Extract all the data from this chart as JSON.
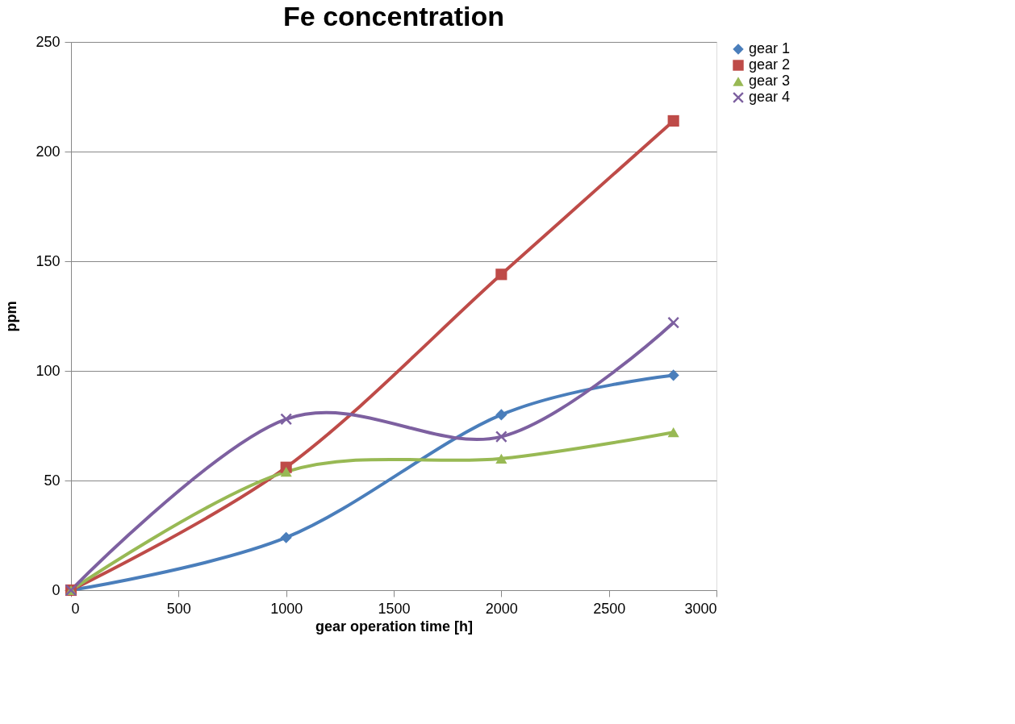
{
  "chart_data": {
    "type": "line",
    "title": "Fe concentration",
    "xlabel": "gear operation time  [h]",
    "ylabel": "ppm",
    "x": [
      0,
      1000,
      2000,
      2800
    ],
    "series": [
      {
        "name": "gear 1",
        "color": "#4a7ebb",
        "marker": "diamond",
        "values": [
          0,
          24,
          80,
          98
        ]
      },
      {
        "name": "gear 2",
        "color": "#be4b48",
        "marker": "square",
        "values": [
          0,
          56,
          144,
          214
        ]
      },
      {
        "name": "gear 3",
        "color": "#98b954",
        "marker": "triangle",
        "values": [
          0,
          54,
          60,
          72
        ]
      },
      {
        "name": "gear 4",
        "color": "#7d60a0",
        "marker": "cross",
        "values": [
          0,
          78,
          70,
          122
        ]
      }
    ],
    "xlim": [
      0,
      3000
    ],
    "xticks": [
      0,
      500,
      1000,
      1500,
      2000,
      2500,
      3000
    ],
    "ylim": [
      0,
      250
    ],
    "yticks": [
      0,
      50,
      100,
      150,
      200,
      250
    ],
    "grid": "y",
    "legend": "right",
    "line_style": "solid"
  }
}
